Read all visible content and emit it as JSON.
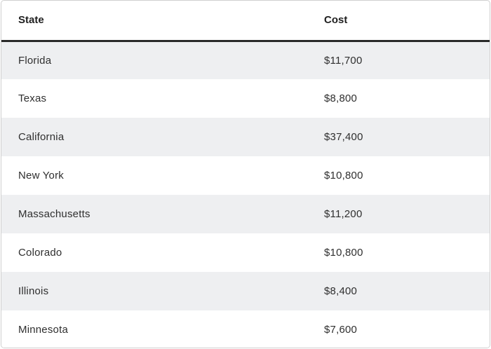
{
  "table": {
    "headers": {
      "state": "State",
      "cost": "Cost"
    },
    "rows": [
      {
        "state": "Florida",
        "cost": "$11,700"
      },
      {
        "state": "Texas",
        "cost": "$8,800"
      },
      {
        "state": "California",
        "cost": "$37,400"
      },
      {
        "state": "New York",
        "cost": "$10,800"
      },
      {
        "state": "Massachusetts",
        "cost": "$11,200"
      },
      {
        "state": "Colorado",
        "cost": "$10,800"
      },
      {
        "state": "Illinois",
        "cost": "$8,400"
      },
      {
        "state": "Minnesota",
        "cost": "$7,600"
      }
    ]
  },
  "colors": {
    "header_rule": "#2a2a2a",
    "stripe": "#eeeff1",
    "border": "#cfcfcf"
  }
}
